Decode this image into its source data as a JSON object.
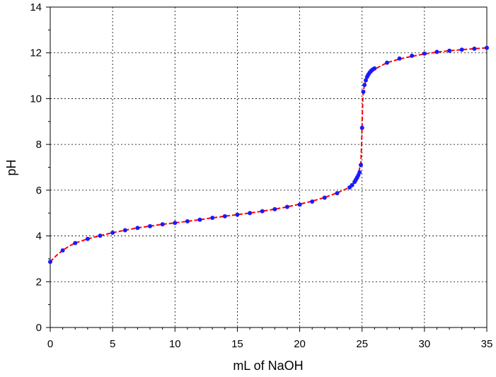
{
  "chart_data": {
    "type": "scatter",
    "title": "",
    "xlabel": "mL of NaOH",
    "ylabel": "pH",
    "xlim": [
      0,
      35
    ],
    "ylim": [
      0,
      14
    ],
    "x_ticks": [
      0,
      5,
      10,
      15,
      20,
      25,
      30,
      35
    ],
    "y_ticks": [
      0,
      2,
      4,
      6,
      8,
      10,
      12,
      14
    ],
    "x_tick_labels": [
      "0",
      "5",
      "10",
      "15",
      "20",
      "25",
      "30",
      "35"
    ],
    "y_tick_labels": [
      "0",
      "2",
      "4",
      "6",
      "8",
      "10",
      "12",
      "14"
    ],
    "grid": true,
    "grid_style": "dotted",
    "legend": "none",
    "series": [
      {
        "style": "dashed line",
        "color": "#ff0000",
        "x": [
          0,
          0.5,
          1,
          1.5,
          2,
          3,
          4,
          5,
          6,
          7,
          8,
          9,
          10,
          11,
          12,
          13,
          14,
          15,
          16,
          17,
          18,
          19,
          20,
          21,
          22,
          23,
          24,
          24.3,
          24.5,
          24.7,
          24.8,
          24.9,
          24.95,
          25,
          25.05,
          25.1,
          25.2,
          25.3,
          25.5,
          25.7,
          26,
          27,
          28,
          29,
          30,
          31,
          32,
          33,
          34,
          35
        ],
        "values": [
          2.87,
          3.15,
          3.37,
          3.55,
          3.69,
          3.87,
          4.01,
          4.14,
          4.25,
          4.35,
          4.43,
          4.51,
          4.57,
          4.64,
          4.71,
          4.79,
          4.86,
          4.93,
          5.0,
          5.08,
          5.17,
          5.27,
          5.39,
          5.52,
          5.68,
          5.88,
          6.12,
          6.3,
          6.45,
          6.7,
          6.95,
          7.2,
          7.8,
          8.72,
          9.9,
          10.3,
          10.6,
          10.8,
          11.0,
          11.15,
          11.28,
          11.57,
          11.73,
          11.85,
          11.95,
          12.03,
          12.09,
          12.14,
          12.18,
          12.22
        ]
      },
      {
        "style": "markers",
        "color": "#1a1aff",
        "x": [
          0,
          1,
          2,
          3,
          4,
          5,
          6,
          7,
          8,
          9,
          10,
          11,
          12,
          13,
          14,
          15,
          16,
          17,
          18,
          19,
          20,
          21,
          22,
          23,
          24,
          24.2,
          24.4,
          24.5,
          24.6,
          24.7,
          24.8,
          24.9,
          25,
          25.1,
          25.2,
          25.3,
          25.4,
          25.5,
          25.6,
          25.7,
          25.8,
          25.9,
          26,
          27,
          28,
          29,
          30,
          31,
          32,
          33,
          34,
          35
        ],
        "values": [
          2.87,
          3.37,
          3.69,
          3.87,
          4.01,
          4.14,
          4.25,
          4.35,
          4.43,
          4.51,
          4.57,
          4.64,
          4.71,
          4.79,
          4.86,
          4.93,
          5.0,
          5.08,
          5.17,
          5.27,
          5.37,
          5.5,
          5.67,
          5.87,
          6.12,
          6.22,
          6.36,
          6.45,
          6.55,
          6.65,
          6.78,
          7.1,
          8.72,
          10.3,
          10.6,
          10.8,
          10.95,
          11.05,
          11.13,
          11.2,
          11.25,
          11.29,
          11.32,
          11.57,
          11.75,
          11.87,
          11.97,
          12.04,
          12.09,
          12.14,
          12.18,
          12.22
        ]
      }
    ]
  }
}
